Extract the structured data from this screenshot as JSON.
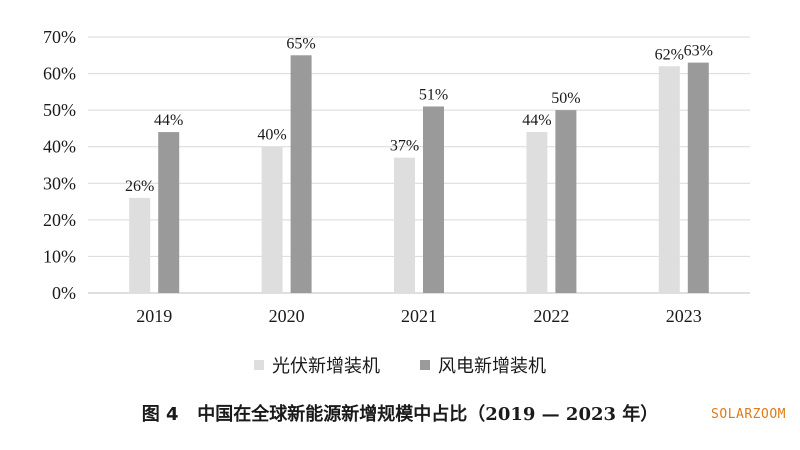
{
  "chart_data": {
    "type": "bar",
    "categories": [
      "2019",
      "2020",
      "2021",
      "2022",
      "2023"
    ],
    "series": [
      {
        "name": "光伏新增装机",
        "values": [
          26,
          40,
          37,
          44,
          62
        ],
        "labels": [
          "26%",
          "40%",
          "37%",
          "44%",
          "62%"
        ],
        "color": "#dedede"
      },
      {
        "name": "风电新增装机",
        "values": [
          44,
          65,
          51,
          50,
          63
        ],
        "labels": [
          "44%",
          "65%",
          "51%",
          "50%",
          "63%"
        ],
        "color": "#9a9a9a"
      }
    ],
    "ylim": [
      0,
      70
    ],
    "yticks": [
      "0%",
      "10%",
      "20%",
      "30%",
      "40%",
      "50%",
      "60%",
      "70%"
    ],
    "grid": true,
    "legend_position": "bottom"
  },
  "caption": {
    "figure_label": "图 4",
    "text": "中国在全球新能源新增规模中占比（",
    "years": "2019 — 2023",
    "suffix": " 年）"
  },
  "watermark": "SOLARZOOM"
}
